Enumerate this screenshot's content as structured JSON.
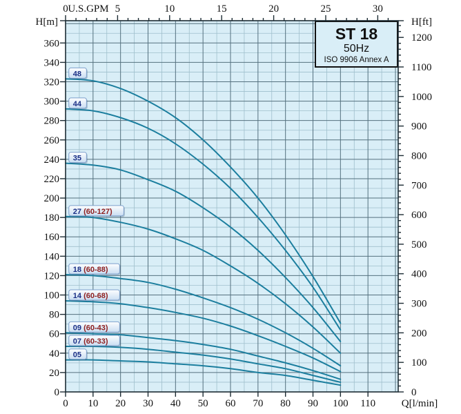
{
  "header": {
    "model": "ST 18",
    "frequency": "50Hz",
    "standard": "ISO 9906 Annex A"
  },
  "axes": {
    "top": {
      "title": "U.S.GPM",
      "tick_labels": [
        "0",
        "5",
        "10",
        "15",
        "20",
        "25",
        "30"
      ]
    },
    "bottom": {
      "title": "Q[l/min]",
      "tick_labels": [
        "0",
        "10",
        "20",
        "30",
        "40",
        "50",
        "60",
        "70",
        "80",
        "90",
        "100",
        "110"
      ]
    },
    "left": {
      "title": "H[m]",
      "tick_labels": [
        "0",
        "20",
        "40",
        "60",
        "80",
        "100",
        "120",
        "140",
        "160",
        "180",
        "200",
        "220",
        "240",
        "260",
        "280",
        "300",
        "320",
        "340",
        "360"
      ]
    },
    "right": {
      "title": "H[ft]",
      "tick_labels": [
        "0",
        "100",
        "200",
        "300",
        "400",
        "500",
        "600",
        "700",
        "800",
        "900",
        "1000",
        "1100",
        "1200"
      ]
    }
  },
  "chart_data": {
    "type": "line",
    "title": "ST 18",
    "subtitle": "50Hz",
    "note": "ISO 9906 Annex A",
    "xlabel": "Q[l/min]",
    "ylabel": "H[m]",
    "ylabel_secondary": "H[ft]",
    "xlabel_secondary": "U.S.GPM",
    "x_range": [
      0,
      120
    ],
    "y_range_m": [
      0,
      383
    ],
    "grid": "on",
    "legend_position": "inline-labels",
    "x": [
      0,
      10,
      20,
      30,
      40,
      50,
      60,
      70,
      80,
      90,
      100
    ],
    "series": [
      {
        "name": "48",
        "range_label": "",
        "values": [
          323,
          321,
          313,
          300,
          283,
          260,
          232,
          200,
          162,
          119,
          71
        ]
      },
      {
        "name": "44",
        "range_label": "",
        "values": [
          292,
          290,
          283,
          272,
          256,
          235,
          210,
          180,
          146,
          108,
          64
        ]
      },
      {
        "name": "35",
        "range_label": "",
        "values": [
          236,
          234,
          229,
          219,
          207,
          190,
          170,
          146,
          118,
          87,
          52
        ]
      },
      {
        "name": "27",
        "range_label": "(60-127)",
        "values": [
          181,
          180,
          175,
          168,
          158,
          146,
          130,
          112,
          91,
          67,
          40
        ]
      },
      {
        "name": "18",
        "range_label": "(60-88)",
        "values": [
          121,
          120,
          117,
          113,
          106,
          97,
          87,
          75,
          61,
          45,
          27
        ]
      },
      {
        "name": "14",
        "range_label": "(60-68)",
        "values": [
          94,
          93,
          91,
          87,
          82,
          76,
          68,
          58,
          47,
          35,
          21
        ]
      },
      {
        "name": "09",
        "range_label": "(60-43)",
        "values": [
          61,
          60,
          59,
          56,
          53,
          49,
          44,
          37,
          30,
          22,
          13
        ]
      },
      {
        "name": "07",
        "range_label": "(60-33)",
        "values": [
          47,
          47,
          46,
          44,
          41,
          38,
          34,
          29,
          24,
          17,
          10
        ]
      },
      {
        "name": "05",
        "range_label": "",
        "values": [
          33,
          33,
          32,
          31,
          29,
          27,
          24,
          20,
          17,
          12,
          7
        ]
      }
    ]
  },
  "colors": {
    "plot_bg": "#d9eef7",
    "grid_major": "#54707e",
    "grid_minor": "#9fbfcc",
    "axis": "#1c2b33",
    "curve": "#1b7e9e",
    "label_box_border": "#7da0cc",
    "label_box_fill_top": "#fdfeff",
    "label_box_fill_bottom": "#c9ddf2",
    "label_stage_text": "#1b2f86",
    "label_range_text": "#8f2020",
    "title_text": "#111111"
  }
}
